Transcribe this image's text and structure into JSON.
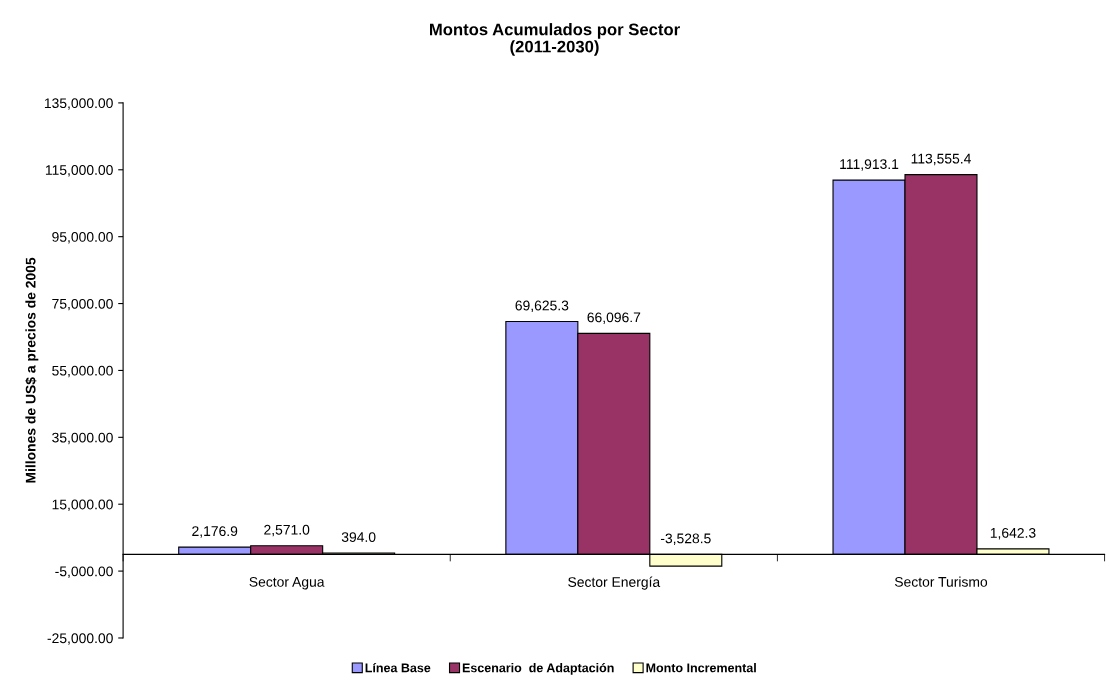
{
  "chart_data": {
    "type": "bar",
    "title": "Montos Acumulados por Sector",
    "subtitle": "(2011-2030)",
    "ylabel": "Millones de US$ a precios de 2005",
    "categories": [
      "Sector Agua",
      "Sector Energía",
      "Sector Turismo"
    ],
    "series": [
      {
        "name": "Línea Base",
        "color": "#9999ff",
        "values": [
          2176.9,
          69625.3,
          111913.1
        ],
        "value_labels": [
          "2,176.9",
          "69,625.3",
          "111,913.1"
        ]
      },
      {
        "name": "Escenario  de Adaptación",
        "color": "#993366",
        "values": [
          2571.0,
          66096.7,
          113555.4
        ],
        "value_labels": [
          "2,571.0",
          "66,096.7",
          "113,555.4"
        ]
      },
      {
        "name": "Monto Incremental",
        "color": "#ffffcc",
        "values": [
          394.0,
          -3528.5,
          1642.3
        ],
        "value_labels": [
          "394.0",
          "-3,528.5",
          "1,642.3"
        ]
      }
    ],
    "ylim": [
      -25000,
      135000
    ],
    "yticks": [
      {
        "value": -25000,
        "label": "-25,000.00"
      },
      {
        "value": -5000,
        "label": "-5,000.00"
      },
      {
        "value": 15000,
        "label": "15,000.00"
      },
      {
        "value": 35000,
        "label": "35,000.00"
      },
      {
        "value": 55000,
        "label": "55,000.00"
      },
      {
        "value": 75000,
        "label": "75,000.00"
      },
      {
        "value": 95000,
        "label": "95,000.00"
      },
      {
        "value": 115000,
        "label": "115,000.00"
      },
      {
        "value": 135000,
        "label": "135,000.00"
      }
    ],
    "grid": false,
    "legend": "bottom"
  }
}
